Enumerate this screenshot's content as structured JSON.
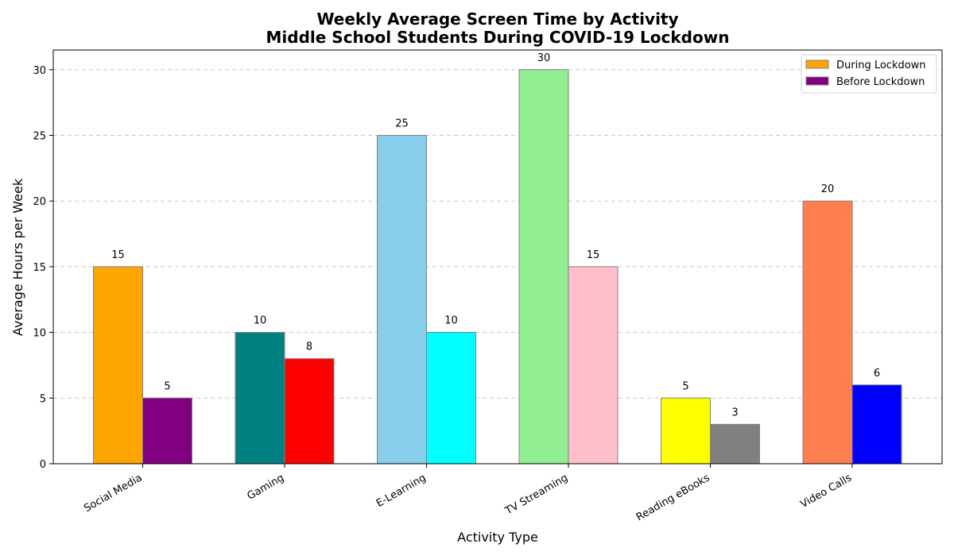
{
  "chart_data": {
    "type": "bar",
    "title": "Weekly Average Screen Time by Activity",
    "subtitle": "Middle School Students During COVID-19 Lockdown",
    "xlabel": "Activity Type",
    "ylabel": "Average Hours per Week",
    "ylim": [
      0,
      31.5
    ],
    "yticks": [
      0,
      5,
      10,
      15,
      20,
      25,
      30
    ],
    "grid": "y-dashed",
    "legend_position": "top-right",
    "categories": [
      "Social Media",
      "Gaming",
      "E-Learning",
      "TV Streaming",
      "Reading eBooks",
      "Video Calls"
    ],
    "series": [
      {
        "name": "During Lockdown",
        "values": [
          15,
          10,
          25,
          30,
          5,
          20
        ],
        "legend_color": "#FFA500",
        "bar_colors": [
          "#FFA500",
          "#008080",
          "#87CEEB",
          "#90EE90",
          "#FFFF00",
          "#FF7F50"
        ]
      },
      {
        "name": "Before Lockdown",
        "values": [
          5,
          8,
          10,
          15,
          3,
          6
        ],
        "legend_color": "#800080",
        "bar_colors": [
          "#800080",
          "#FF0000",
          "#00FFFF",
          "#FFC0CB",
          "#808080",
          "#0000FF"
        ]
      }
    ],
    "bar_edge_color": "#808080"
  }
}
